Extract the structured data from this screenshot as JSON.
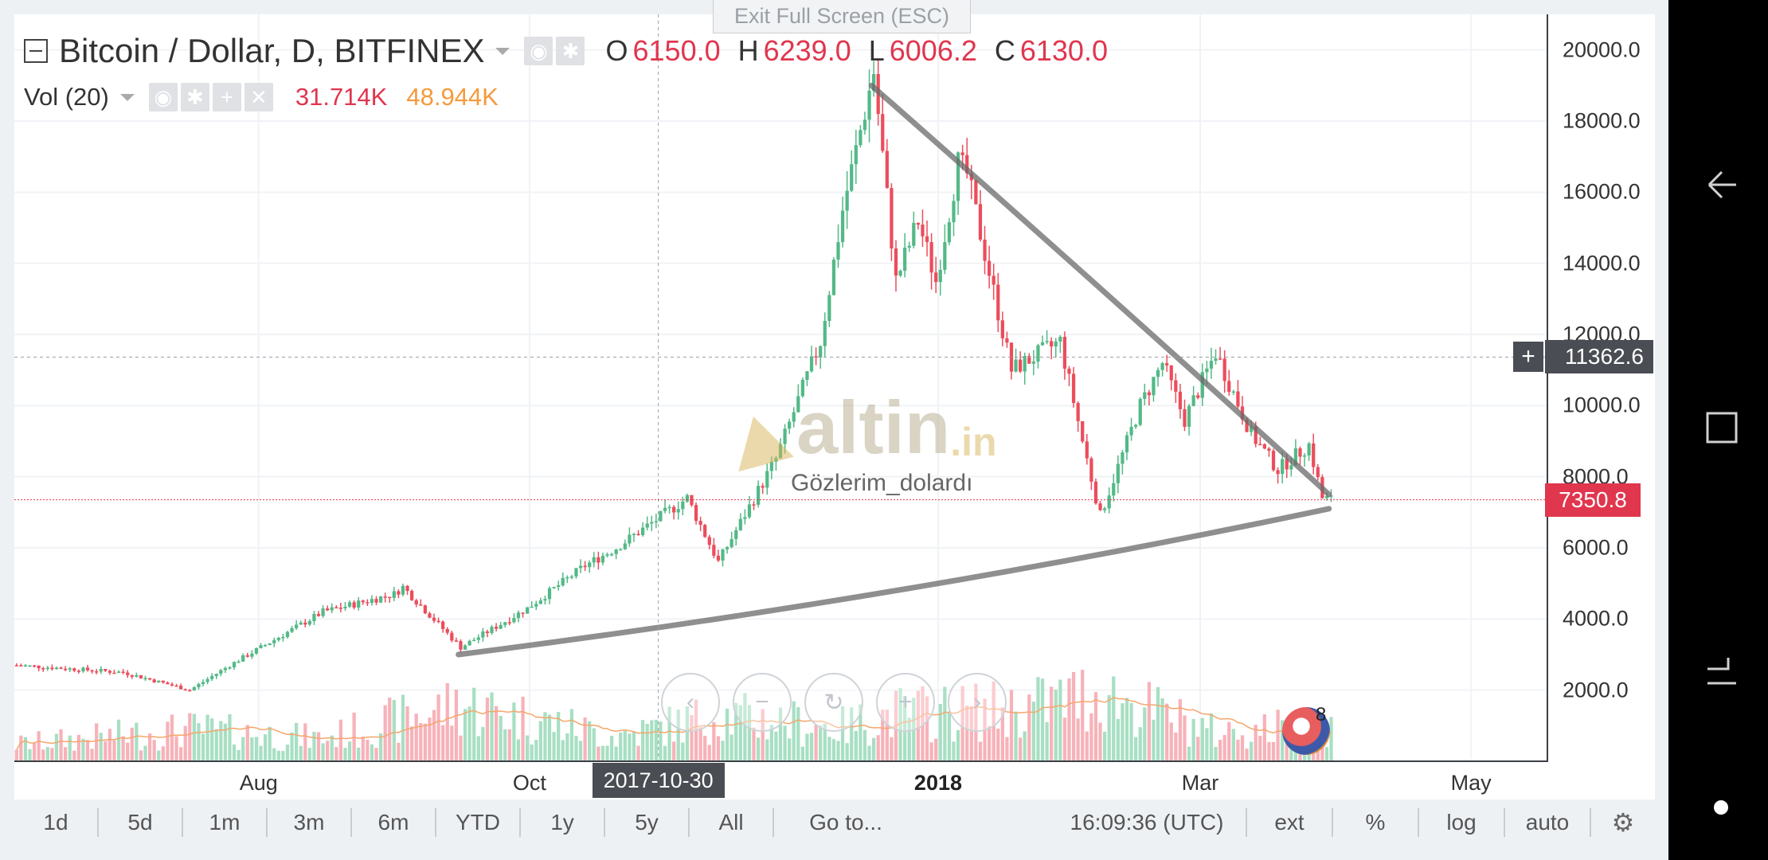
{
  "window": {
    "exit_fullscreen": "Exit Full Screen (ESC)"
  },
  "legend": {
    "symbol": "Bitcoin / Dollar, D, BITFINEX",
    "open_label": "O",
    "open": "6150.0",
    "high_label": "H",
    "high": "6239.0",
    "low_label": "L",
    "low": "6006.2",
    "close_label": "C",
    "close": "6130.0"
  },
  "volume_legend": {
    "label": "Vol (20)",
    "value1": "31.714K",
    "value2": "48.944K"
  },
  "watermark": {
    "brand": "altin",
    "tld": ".in",
    "user": "Gözlerim_dolardı"
  },
  "badges": {
    "last_price": "7350.8",
    "crosshair_price": "11362.6",
    "crosshair_date": "2017-10-30"
  },
  "events": {
    "count": "8"
  },
  "toolbar": {
    "ranges": [
      "1d",
      "5d",
      "1m",
      "3m",
      "6m",
      "YTD",
      "1y",
      "5y",
      "All"
    ],
    "goto": "Go to...",
    "time": "16:09:36",
    "timezone": "(UTC)",
    "options": [
      "ext",
      "%",
      "log",
      "auto"
    ]
  },
  "colors": {
    "up": "#53b987",
    "down": "#eb4d5c",
    "vol_up": "#a8dfc3",
    "vol_down": "#f7b2b9",
    "ma": "#f5a66b",
    "accent_red": "#e0364e"
  },
  "chart_data": {
    "type": "candlestick",
    "title": "Bitcoin / Dollar, D, BITFINEX",
    "price_axis": {
      "ticks": [
        2000,
        4000,
        6000,
        8000,
        10000,
        12000,
        14000,
        16000,
        18000,
        20000
      ],
      "range": [
        0,
        21000
      ]
    },
    "time_axis": {
      "ticks": [
        "Aug",
        "Oct",
        "2018",
        "Mar",
        "May"
      ],
      "bold_ticks": [
        "2018"
      ],
      "range": [
        "2017-06-07",
        "2018-05-18"
      ]
    },
    "ohlc_last": {
      "open": 6150.0,
      "high": 6239.0,
      "low": 6006.2,
      "close": 6130.0
    },
    "last_price_line": 7350.8,
    "crosshair": {
      "date": "2017-10-30",
      "price": 11362.6
    },
    "price_path": [
      [
        "2017-06-07",
        2700
      ],
      [
        "2017-07-01",
        2500
      ],
      [
        "2017-07-16",
        2000
      ],
      [
        "2017-07-25",
        2700
      ],
      [
        "2017-08-15",
        4200
      ],
      [
        "2017-08-31",
        4700
      ],
      [
        "2017-09-02",
        4900
      ],
      [
        "2017-09-15",
        3200
      ],
      [
        "2017-09-30",
        4300
      ],
      [
        "2017-10-13",
        5500
      ],
      [
        "2017-10-20",
        6000
      ],
      [
        "2017-11-05",
        7400
      ],
      [
        "2017-11-12",
        5600
      ],
      [
        "2017-11-25",
        8500
      ],
      [
        "2017-12-05",
        11800
      ],
      [
        "2017-12-10",
        15500
      ],
      [
        "2017-12-17",
        19400
      ],
      [
        "2017-12-22",
        13500
      ],
      [
        "2017-12-27",
        15200
      ],
      [
        "2017-12-31",
        13500
      ],
      [
        "2018-01-05",
        16800
      ],
      [
        "2018-01-07",
        16500
      ],
      [
        "2018-01-17",
        11000
      ],
      [
        "2018-01-28",
        11800
      ],
      [
        "2018-02-02",
        9000
      ],
      [
        "2018-02-06",
        6900
      ],
      [
        "2018-02-15",
        10000
      ],
      [
        "2018-02-20",
        11200
      ],
      [
        "2018-02-25",
        9600
      ],
      [
        "2018-03-04",
        11500
      ],
      [
        "2018-03-12",
        9200
      ],
      [
        "2018-03-18",
        8200
      ],
      [
        "2018-03-25",
        8900
      ],
      [
        "2018-03-28",
        7400
      ],
      [
        "2018-03-30",
        7350
      ]
    ],
    "volume_axis": {
      "range": [
        0,
        120000
      ]
    },
    "volume_path": [
      [
        "2017-06-07",
        15000
      ],
      [
        "2017-07-16",
        28000
      ],
      [
        "2017-08-15",
        20000
      ],
      [
        "2017-09-15",
        50000
      ],
      [
        "2017-10-20",
        22000
      ],
      [
        "2017-11-12",
        40000
      ],
      [
        "2017-12-10",
        30000
      ],
      [
        "2017-12-22",
        42000
      ],
      [
        "2018-01-17",
        45000
      ],
      [
        "2018-02-06",
        60000
      ],
      [
        "2018-03-04",
        25000
      ],
      [
        "2018-03-30",
        32000
      ]
    ],
    "annotations": [
      {
        "type": "trendline",
        "from": [
          "2017-12-17",
          19000
        ],
        "to": [
          "2018-03-30",
          7500
        ]
      },
      {
        "type": "trendline",
        "from": [
          "2017-09-15",
          3000
        ],
        "to": [
          "2018-03-30",
          7100
        ]
      }
    ]
  }
}
